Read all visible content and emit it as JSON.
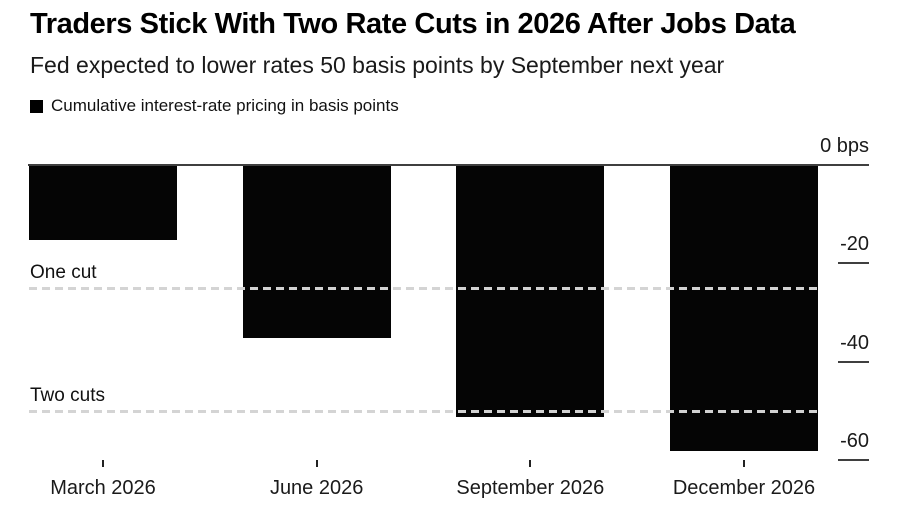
{
  "page": {
    "title": "Traders Stick With Two Rate Cuts in 2026 After Jobs Data",
    "subtitle": "Fed expected to lower rates 50 basis points by September next year"
  },
  "legend": {
    "label": "Cumulative interest-rate pricing in basis points",
    "marker_color": "#000000"
  },
  "chart_data": {
    "type": "bar",
    "title": "Traders Stick With Two Rate Cuts in 2026 After Jobs Data",
    "subtitle": "Fed expected to lower rates 50 basis points by September next year",
    "legend_entries": [
      "Cumulative interest-rate pricing in basis points"
    ],
    "legend_position": "top-left",
    "categories": [
      "March 2026",
      "June 2026",
      "September 2026",
      "December 2026"
    ],
    "values": [
      -15,
      -35,
      -51,
      -58
    ],
    "unit": "bps",
    "bar_color": "#050505",
    "ylim": [
      -65,
      0
    ],
    "grid": false,
    "y_ticks": [
      {
        "value": 0,
        "label": "0 bps"
      },
      {
        "value": -20,
        "label": "-20"
      },
      {
        "value": -40,
        "label": "-40"
      },
      {
        "value": -60,
        "label": "-60"
      }
    ],
    "reference_lines": [
      {
        "label": "One cut",
        "value": -25,
        "style": "dashed"
      },
      {
        "label": "Two cuts",
        "value": -50,
        "style": "dashed"
      }
    ]
  }
}
